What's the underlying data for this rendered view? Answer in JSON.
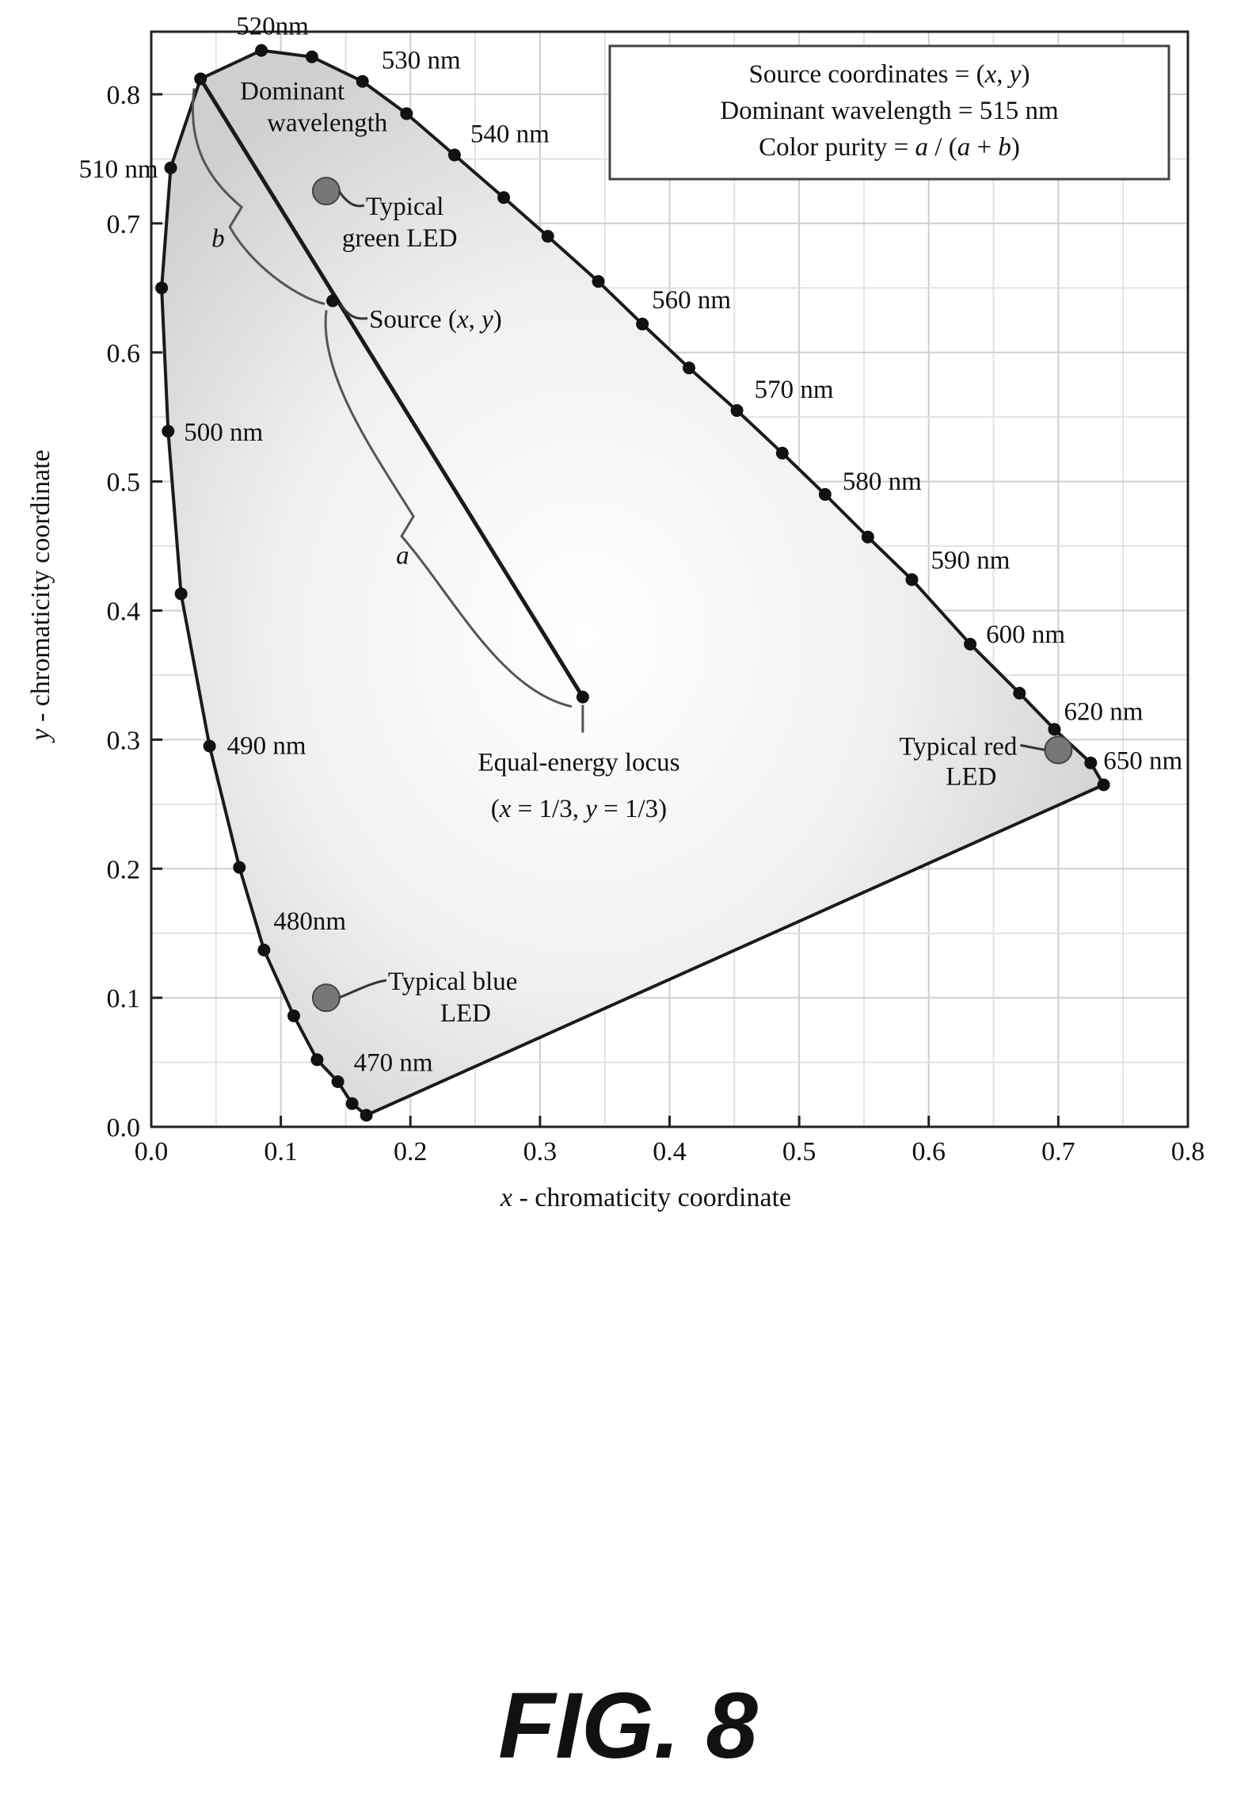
{
  "figure_label": "FIG. 8",
  "chart_data": {
    "type": "scatter",
    "xlabel": "x - chromaticity coordinate",
    "ylabel": "y - chromaticity coordinate",
    "xlim": [
      0.0,
      0.8
    ],
    "ylim": [
      0.0,
      0.85
    ],
    "grid": true,
    "x_ticks": [
      "0.0",
      "0.1",
      "0.2",
      "0.3",
      "0.4",
      "0.5",
      "0.6",
      "0.7",
      "0.8"
    ],
    "y_ticks": [
      "0.0",
      "0.1",
      "0.2",
      "0.3",
      "0.4",
      "0.5",
      "0.6",
      "0.7",
      "0.8"
    ],
    "legend_box": {
      "position": "top-right",
      "lines": [
        "Source coordinates = (x, y)",
        "Dominant wavelength = 515 nm",
        "Color purity  =  a / (a + b)"
      ]
    },
    "spectral_locus": [
      [
        0.166,
        0.009
      ],
      [
        0.155,
        0.018
      ],
      [
        0.144,
        0.035
      ],
      [
        0.128,
        0.052
      ],
      [
        0.11,
        0.086
      ],
      [
        0.087,
        0.137
      ],
      [
        0.068,
        0.201
      ],
      [
        0.045,
        0.295
      ],
      [
        0.023,
        0.413
      ],
      [
        0.013,
        0.539
      ],
      [
        0.008,
        0.65
      ],
      [
        0.015,
        0.743
      ],
      [
        0.038,
        0.812
      ],
      [
        0.085,
        0.834
      ],
      [
        0.124,
        0.829
      ],
      [
        0.163,
        0.81
      ],
      [
        0.197,
        0.785
      ],
      [
        0.234,
        0.753
      ],
      [
        0.272,
        0.72
      ],
      [
        0.306,
        0.69
      ],
      [
        0.345,
        0.655
      ],
      [
        0.379,
        0.622
      ],
      [
        0.415,
        0.588
      ],
      [
        0.452,
        0.555
      ],
      [
        0.487,
        0.522
      ],
      [
        0.52,
        0.49
      ],
      [
        0.553,
        0.457
      ],
      [
        0.587,
        0.424
      ],
      [
        0.632,
        0.374
      ],
      [
        0.67,
        0.336
      ],
      [
        0.697,
        0.308
      ],
      [
        0.725,
        0.282
      ],
      [
        0.735,
        0.265
      ]
    ],
    "wavelength_labels": [
      {
        "text": "470 nm",
        "x": 0.144,
        "y": 0.052
      },
      {
        "text": "480nm",
        "x": 0.087,
        "y": 0.137
      },
      {
        "text": "490 nm",
        "x": 0.045,
        "y": 0.295
      },
      {
        "text": "500 nm",
        "x": 0.013,
        "y": 0.539
      },
      {
        "text": "510 nm",
        "x": 0.015,
        "y": 0.743
      },
      {
        "text": "520nm",
        "x": 0.085,
        "y": 0.834
      },
      {
        "text": "530 nm",
        "x": 0.163,
        "y": 0.81
      },
      {
        "text": "540 nm",
        "x": 0.234,
        "y": 0.753
      },
      {
        "text": "560 nm",
        "x": 0.379,
        "y": 0.622
      },
      {
        "text": "570 nm",
        "x": 0.452,
        "y": 0.555
      },
      {
        "text": "580 nm",
        "x": 0.52,
        "y": 0.49
      },
      {
        "text": "590 nm",
        "x": 0.587,
        "y": 0.424
      },
      {
        "text": "600 nm",
        "x": 0.632,
        "y": 0.374
      },
      {
        "text": "620 nm",
        "x": 0.697,
        "y": 0.308
      },
      {
        "text": "650 nm",
        "x": 0.725,
        "y": 0.282
      }
    ],
    "points": [
      {
        "name": "Equal-energy locus",
        "x": 0.333,
        "y": 0.333,
        "label": [
          "Equal-energy locus",
          "(x = 1/3, y = 1/3)"
        ]
      },
      {
        "name": "Source (x, y)",
        "x": 0.14,
        "y": 0.64,
        "label": [
          "Source (x, y)"
        ]
      },
      {
        "name": "Typical green LED",
        "x": 0.135,
        "y": 0.725,
        "label": [
          "Typical",
          "green LED"
        ]
      },
      {
        "name": "Typical red LED",
        "x": 0.7,
        "y": 0.292,
        "label": [
          "Typical red",
          "LED"
        ]
      },
      {
        "name": "Typical blue LED",
        "x": 0.135,
        "y": 0.1,
        "label": [
          "Typical blue",
          "LED"
        ]
      }
    ],
    "dominant_wavelength": {
      "label": [
        "Dominant",
        "wavelength"
      ],
      "x": 0.038,
      "y": 0.812
    },
    "brace_labels": [
      "a",
      "b"
    ]
  }
}
